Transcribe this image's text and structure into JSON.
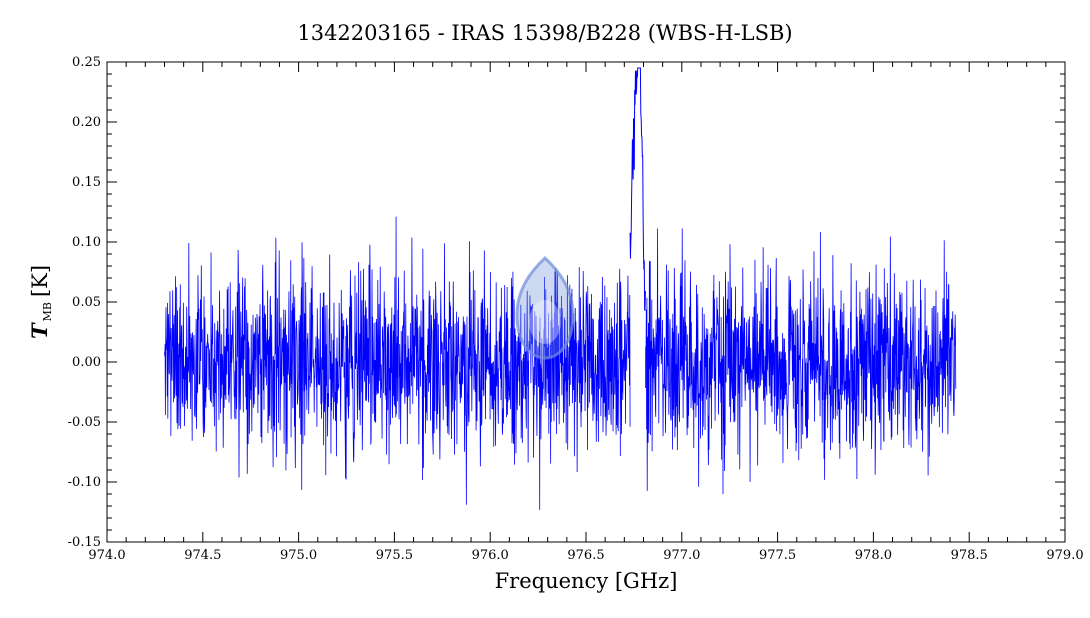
{
  "chart_data": {
    "type": "line",
    "title": "1342203165 - IRAS 15398/B228 (WBS-H-LSB)",
    "xlabel": "Frequency [GHz]",
    "ylabel": {
      "symbol": "T",
      "subscript": "MB",
      "unit": "[K]"
    },
    "xlim": [
      974.0,
      979.0
    ],
    "ylim": [
      -0.15,
      0.25
    ],
    "x_ticks": [
      "974.0",
      "974.5",
      "975.0",
      "975.5",
      "976.0",
      "976.5",
      "977.0",
      "977.5",
      "978.0",
      "978.5",
      "979.0"
    ],
    "y_ticks": [
      "-0.15",
      "-0.10",
      "-0.05",
      "0.00",
      "0.05",
      "0.10",
      "0.15",
      "0.20",
      "0.25"
    ],
    "grid": false,
    "legend": "none",
    "series": [
      {
        "color": "#0000ff",
        "x_range": [
          974.3,
          978.43
        ],
        "gap": [
          976.73,
          976.81
        ],
        "noise_rms": 0.038,
        "baseline": 0.0,
        "features": [
          {
            "x": 976.78,
            "peak": 0.22,
            "note": "emission line"
          },
          {
            "x": 976.75,
            "peak": 0.16
          }
        ]
      }
    ],
    "logo_color": "#6f8fd8"
  }
}
